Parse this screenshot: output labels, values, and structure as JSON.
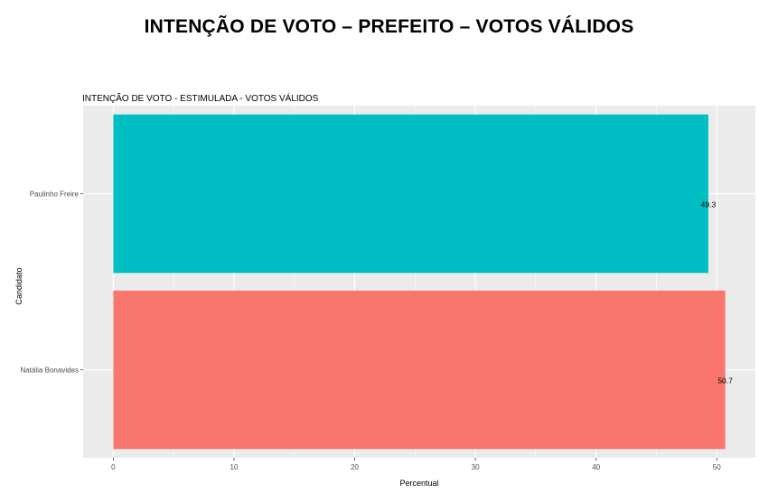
{
  "header": {
    "title": "INTENÇÃO DE VOTO – PREFEITO – VOTOS VÁLIDOS"
  },
  "chart_data": {
    "type": "bar",
    "orientation": "horizontal",
    "title": "INTENÇÃO DE VOTO - ESTIMULADA - VOTOS VÁLIDOS",
    "xlabel": "Percentual",
    "ylabel": "Candidato",
    "categories": [
      "Paulinho Freire",
      "Natália Bonavides"
    ],
    "values": [
      49.3,
      50.7
    ],
    "data_labels": [
      "49.3",
      "50.7"
    ],
    "colors": [
      "#00BFC4",
      "#F8766D"
    ],
    "xlim": [
      -2.5,
      53.2
    ],
    "x_ticks": [
      0,
      10,
      20,
      30,
      40,
      50
    ],
    "x_tick_labels": [
      "0",
      "10",
      "20",
      "30",
      "40",
      "50"
    ],
    "grid": true,
    "legend": "none",
    "panel_background": "#EBEBEB"
  }
}
